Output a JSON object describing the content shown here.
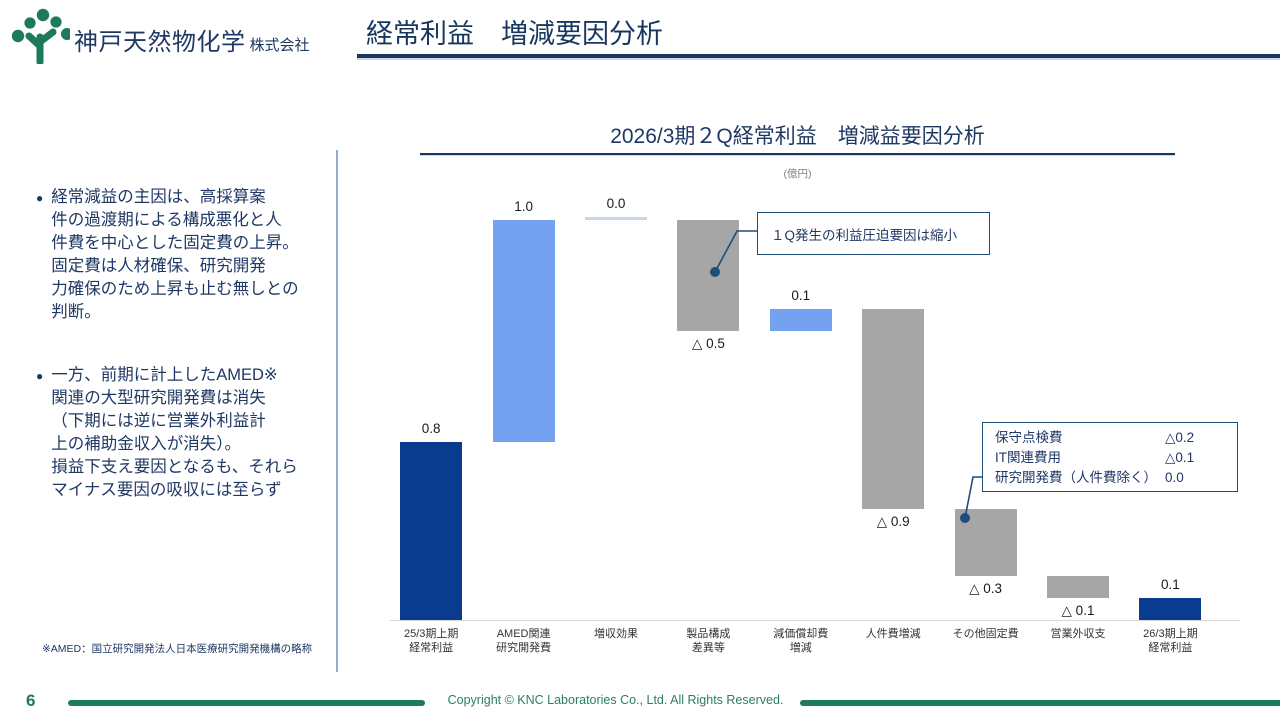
{
  "header": {
    "company_name": "神戸天然物化学",
    "company_suffix": "株式会社",
    "page_title": "経常利益　増減要因分析"
  },
  "sidebar": {
    "bullets": [
      "経常減益の主因は、高採算案\n件の過渡期による構成悪化と人\n件費を中心とした固定費の上昇。\n固定費は人材確保、研究開発\n力確保のため上昇も止む無しとの\n判断。",
      "一方、前期に計上したAMED※\n関連の大型研究開発費は消失\n（下期には逆に営業外利益計\n上の補助金収入が消失）。\n損益下支え要因となるも、それら\nマイナス要因の吸収には至らず"
    ]
  },
  "chart_data": {
    "type": "bar",
    "subtype": "waterfall",
    "title": "2026/3期２Q経常利益　増減益要因分析",
    "unit_label": "(億円)",
    "ylim": [
      0,
      1.8
    ],
    "grid": false,
    "categories": [
      "25/3期上期\n経常利益",
      "AMED関連\n研究開発費",
      "増収効果",
      "製品構成\n差異等",
      "減価償却費\n増減",
      "人件費増減",
      "その他固定費",
      "営業外収支",
      "26/3期上期\n経常利益"
    ],
    "bars": [
      {
        "category": "25/3期上期\n経常利益",
        "value": 0.8,
        "display": "0.8",
        "kind": "total"
      },
      {
        "category": "AMED関連\n研究開発費",
        "value": 1.0,
        "display": "1.0",
        "kind": "increase"
      },
      {
        "category": "増収効果",
        "value": 0.0,
        "display": "0.0",
        "kind": "zero"
      },
      {
        "category": "製品構成\n差異等",
        "value": -0.5,
        "display": "△ 0.5",
        "kind": "decrease"
      },
      {
        "category": "減価償却費\n増減",
        "value": 0.1,
        "display": "0.1",
        "kind": "increase"
      },
      {
        "category": "人件費増減",
        "value": -0.9,
        "display": "△ 0.9",
        "kind": "decrease"
      },
      {
        "category": "その他固定費",
        "value": -0.3,
        "display": "△ 0.3",
        "kind": "decrease"
      },
      {
        "category": "営業外収支",
        "value": -0.1,
        "display": "△ 0.1",
        "kind": "decrease"
      },
      {
        "category": "26/3期上期\n経常利益",
        "value": 0.1,
        "display": "0.1",
        "kind": "total"
      }
    ],
    "colors": {
      "total": "#0B3B8F",
      "increase": "#74A2F0",
      "decrease": "#A6A6A6",
      "zero": "#C9D6EE"
    }
  },
  "callouts": {
    "box1": {
      "text": "１Q発生の利益圧迫要因は縮小"
    },
    "box2": {
      "rows": [
        {
          "label": "保守点検費",
          "value": "△0.2"
        },
        {
          "label": "IT関連費用",
          "value": "△0.1"
        },
        {
          "label": "研究開発費（人件費除く）",
          "value": "0.0"
        }
      ]
    }
  },
  "footnote": "※AMED：国立研究開発法人日本医療研究開発機構の略称",
  "footer": {
    "page_number": "6",
    "copyright": "Copyright © KNC Laboratories Co., Ltd. All Rights Reserved."
  }
}
